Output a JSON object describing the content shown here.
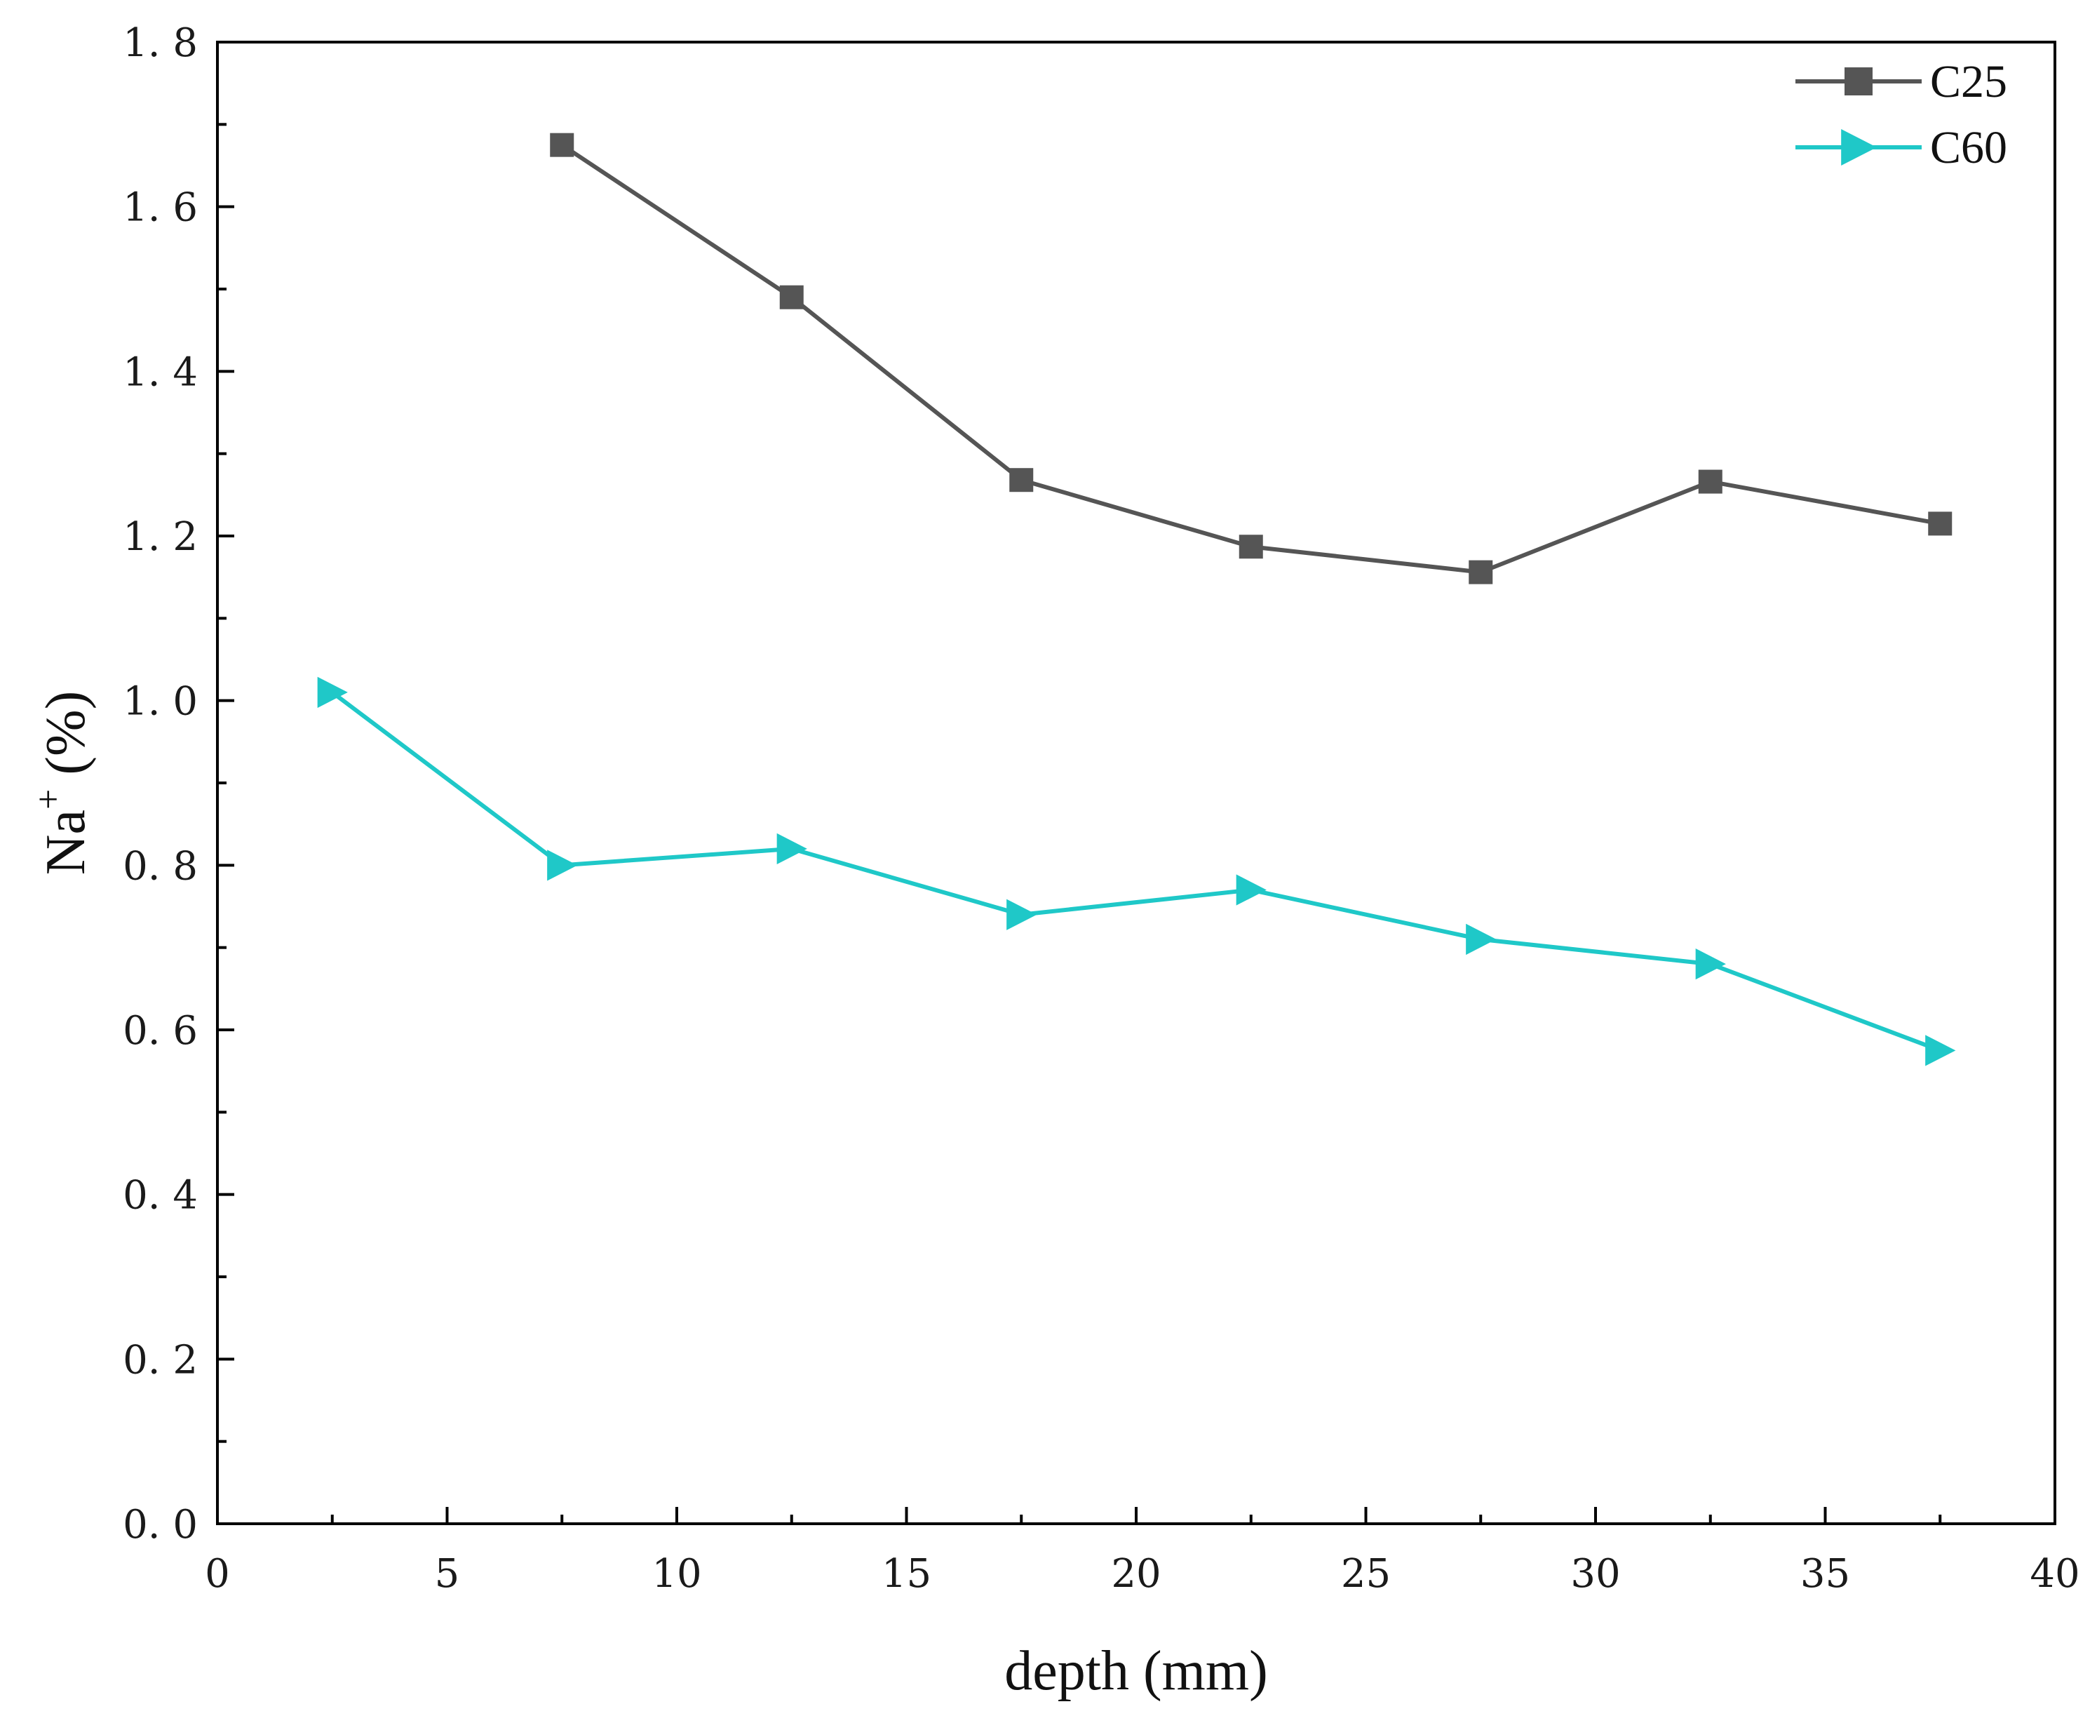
{
  "chart_data": {
    "type": "line",
    "title": "",
    "xlabel": "depth (mm)",
    "ylabel_main": "Na",
    "ylabel_sup": "+",
    "ylabel_unit": " (%)",
    "xlim": [
      0,
      40
    ],
    "ylim": [
      0.0,
      1.8
    ],
    "xticks": [
      0,
      5,
      10,
      15,
      20,
      25,
      30,
      35,
      40
    ],
    "xtick_labels": [
      "0",
      "5",
      "10",
      "15",
      "20",
      "25",
      "30",
      "35",
      "40"
    ],
    "yticks": [
      0.0,
      0.2,
      0.4,
      0.6,
      0.8,
      1.0,
      1.2,
      1.4,
      1.6,
      1.8
    ],
    "ytick_labels": [
      "0. 0",
      "0. 2",
      "0. 4",
      "0. 6",
      "0. 8",
      "1. 0",
      "1. 2",
      "1. 4",
      "1. 6",
      "1. 8"
    ],
    "grid": false,
    "legend_position": "top-right",
    "series": [
      {
        "name": "C25",
        "color": "#555555",
        "marker": "square",
        "x": [
          7.5,
          12.5,
          17.5,
          22.5,
          27.5,
          32.5,
          37.5
        ],
        "y": [
          1.675,
          1.49,
          1.268,
          1.187,
          1.156,
          1.266,
          1.215
        ]
      },
      {
        "name": "C60",
        "color": "#1fc8c8",
        "marker": "triangle-right",
        "x": [
          2.5,
          7.5,
          12.5,
          17.5,
          22.5,
          27.5,
          32.5,
          37.5
        ],
        "y": [
          1.01,
          0.8,
          0.82,
          0.74,
          0.77,
          0.71,
          0.68,
          0.575
        ]
      }
    ]
  }
}
